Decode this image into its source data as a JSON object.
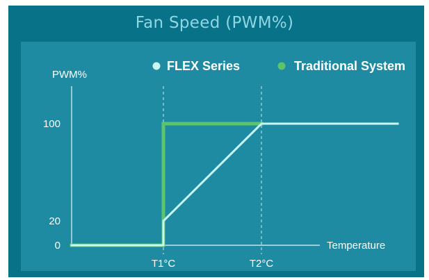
{
  "colors": {
    "frame_background": "#087289",
    "panel_background": "#1e8ba3",
    "title_text": "#8fd6e3",
    "flex_series": "#c9f7f2",
    "traditional_system": "#5cc46a",
    "axis": "#e6f3f6",
    "guide": "#cfe9ef"
  },
  "chart_data": {
    "type": "line",
    "title": "Fan Speed (PWM%)",
    "ylabel": "PWM%",
    "xlabel": "Temperature",
    "x_categories": [
      "T1°C",
      "T2°C"
    ],
    "y_ticks": [
      {
        "value": 100,
        "label": "100"
      },
      {
        "value": 20,
        "label": "20"
      },
      {
        "value": 0,
        "label": "0"
      }
    ],
    "x_ticks": [
      {
        "label": "T1°C"
      },
      {
        "label": "T2°C"
      }
    ],
    "ylim": [
      0,
      100
    ],
    "grid": false,
    "legend_position": "top-right",
    "series": [
      {
        "name": "FLEX Series",
        "color": "#c9f7f2",
        "points": [
          {
            "x": "start",
            "y": 0
          },
          {
            "x": "T1°C",
            "y": 0
          },
          {
            "x": "T1°C",
            "y": 20
          },
          {
            "x": "T2°C",
            "y": 100
          },
          {
            "x": "end",
            "y": 100
          }
        ]
      },
      {
        "name": "Traditional System",
        "color": "#5cc46a",
        "points": [
          {
            "x": "start",
            "y": 0
          },
          {
            "x": "T1°C",
            "y": 0
          },
          {
            "x": "T1°C",
            "y": 100
          },
          {
            "x": "T2°C",
            "y": 100
          }
        ]
      }
    ]
  }
}
